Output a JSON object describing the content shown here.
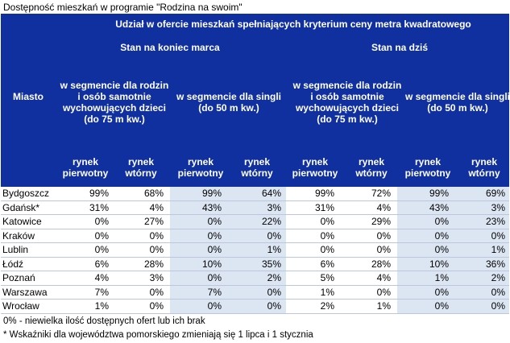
{
  "title": "Dostępność mieszkań w programie \"Rodzina na swoim\"",
  "header": {
    "top": "Udział w ofercie mieszkań spełniających kryterium ceny metra kwadratowego",
    "period_march": "Stan na koniec marca",
    "period_today": "Stan na dziś",
    "city_label": "Miasto",
    "seg_family": "w segmencie dla rodzin i osób samotnie wychowujących dzieci (do 75 m kw.)",
    "seg_single": "w segmencie dla singli (do 50 m kw.)",
    "primary": "rynek pierwotny",
    "secondary": "rynek wtórny"
  },
  "colors": {
    "header_bg": "#1030a0",
    "shade": "#dce6f2",
    "row_line": "#bcc6dc"
  },
  "rows": [
    {
      "city": "Bydgoszcz",
      "v": [
        "99%",
        "68%",
        "99%",
        "64%",
        "99%",
        "72%",
        "99%",
        "69%"
      ]
    },
    {
      "city": "Gdańsk*",
      "v": [
        "31%",
        "4%",
        "43%",
        "3%",
        "31%",
        "4%",
        "43%",
        "3%"
      ]
    },
    {
      "city": "Katowice",
      "v": [
        "0%",
        "27%",
        "0%",
        "22%",
        "0%",
        "29%",
        "0%",
        "23%"
      ]
    },
    {
      "city": "Kraków",
      "v": [
        "0%",
        "0%",
        "0%",
        "0%",
        "0%",
        "0%",
        "0%",
        "0%"
      ]
    },
    {
      "city": "Lublin",
      "v": [
        "0%",
        "0%",
        "0%",
        "1%",
        "0%",
        "0%",
        "0%",
        "1%"
      ]
    },
    {
      "city": "Łódź",
      "v": [
        "6%",
        "28%",
        "10%",
        "35%",
        "6%",
        "28%",
        "10%",
        "36%"
      ]
    },
    {
      "city": "Poznań",
      "v": [
        "4%",
        "3%",
        "0%",
        "2%",
        "5%",
        "4%",
        "1%",
        "2%"
      ]
    },
    {
      "city": "Warszawa",
      "v": [
        "7%",
        "0%",
        "7%",
        "0%",
        "1%",
        "0%",
        "0%",
        "0%"
      ]
    },
    {
      "city": "Wrocław",
      "v": [
        "1%",
        "0%",
        "0%",
        "0%",
        "2%",
        "1%",
        "0%",
        "0%"
      ]
    }
  ],
  "footnotes": [
    "0% - niewielka ilość dostępnych ofert lub ich brak",
    "* Wskaźniki dla województwa pomorskiego zmieniają się 1 lipca i 1 stycznia"
  ]
}
